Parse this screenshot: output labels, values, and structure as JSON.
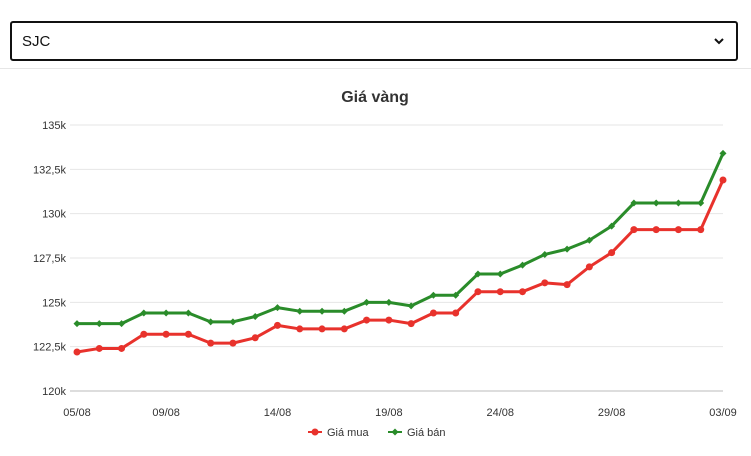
{
  "selector": {
    "selected": "SJC",
    "icon": "chevron-down-icon"
  },
  "chart_data": {
    "type": "line",
    "title": "Giá vàng",
    "xlabel": "",
    "ylabel": "",
    "ylim": [
      120000,
      135000
    ],
    "yticks": [
      120000,
      122500,
      125000,
      127500,
      130000,
      132500,
      135000
    ],
    "ytick_labels": [
      "120k",
      "122,5k",
      "125k",
      "127,5k",
      "130k",
      "132,5k",
      "135k"
    ],
    "categories": [
      "05/08",
      "06/08",
      "07/08",
      "08/08",
      "09/08",
      "10/08",
      "11/08",
      "12/08",
      "13/08",
      "14/08",
      "15/08",
      "16/08",
      "17/08",
      "18/08",
      "19/08",
      "20/08",
      "21/08",
      "22/08",
      "23/08",
      "24/08",
      "25/08",
      "26/08",
      "27/08",
      "28/08",
      "29/08",
      "30/08",
      "31/08",
      "01/09",
      "02/09",
      "03/09"
    ],
    "xtick_labels": [
      "05/08",
      "09/08",
      "14/08",
      "19/08",
      "24/08",
      "29/08",
      "03/09"
    ],
    "xtick_indices": [
      0,
      4,
      9,
      14,
      19,
      24,
      29
    ],
    "grid": true,
    "legend_position": "bottom-center",
    "series": [
      {
        "name": "Giá mua",
        "color": "#e8322c",
        "marker": "circle",
        "values": [
          122200,
          122400,
          122400,
          123200,
          123200,
          123200,
          122700,
          122700,
          123000,
          123700,
          123500,
          123500,
          123500,
          124000,
          124000,
          123800,
          124400,
          124400,
          125600,
          125600,
          125600,
          126100,
          126000,
          127000,
          127800,
          129100,
          129100,
          129100,
          129100,
          131900
        ]
      },
      {
        "name": "Giá bán",
        "color": "#2a8c2a",
        "marker": "diamond",
        "values": [
          123800,
          123800,
          123800,
          124400,
          124400,
          124400,
          123900,
          123900,
          124200,
          124700,
          124500,
          124500,
          124500,
          125000,
          125000,
          124800,
          125400,
          125400,
          126600,
          126600,
          127100,
          127700,
          128000,
          128500,
          129300,
          130600,
          130600,
          130600,
          130600,
          133400
        ]
      }
    ]
  }
}
